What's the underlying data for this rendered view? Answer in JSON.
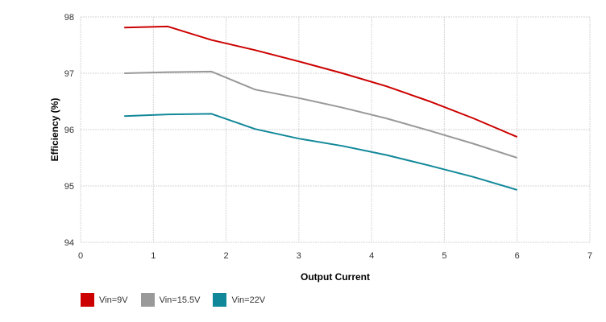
{
  "chart_data": {
    "type": "line",
    "title": "",
    "xlabel": "Output Current",
    "ylabel": "Efficiency (%)",
    "xlim": [
      0,
      7
    ],
    "ylim": [
      94,
      98
    ],
    "xticks": [
      0,
      1,
      2,
      3,
      4,
      5,
      6,
      7
    ],
    "yticks": [
      94,
      95,
      96,
      97,
      98
    ],
    "grid": true,
    "legend_position": "bottom-left",
    "x": [
      0.6,
      1.2,
      1.8,
      2.4,
      3.0,
      3.6,
      4.2,
      4.8,
      5.4,
      6.0
    ],
    "series": [
      {
        "name": "Vin=9V",
        "color": "#cc0000",
        "values": [
          97.81,
          97.83,
          97.59,
          97.41,
          97.21,
          97.0,
          96.77,
          96.5,
          96.2,
          95.87
        ]
      },
      {
        "name": "Vin=15.5V",
        "color": "#999999",
        "values": [
          97.0,
          97.02,
          97.03,
          96.71,
          96.56,
          96.39,
          96.2,
          95.98,
          95.75,
          95.5
        ]
      },
      {
        "name": "Vin=22V",
        "color": "#118899",
        "values": [
          96.24,
          96.27,
          96.28,
          96.01,
          95.84,
          95.71,
          95.55,
          95.36,
          95.16,
          94.93
        ]
      }
    ]
  }
}
